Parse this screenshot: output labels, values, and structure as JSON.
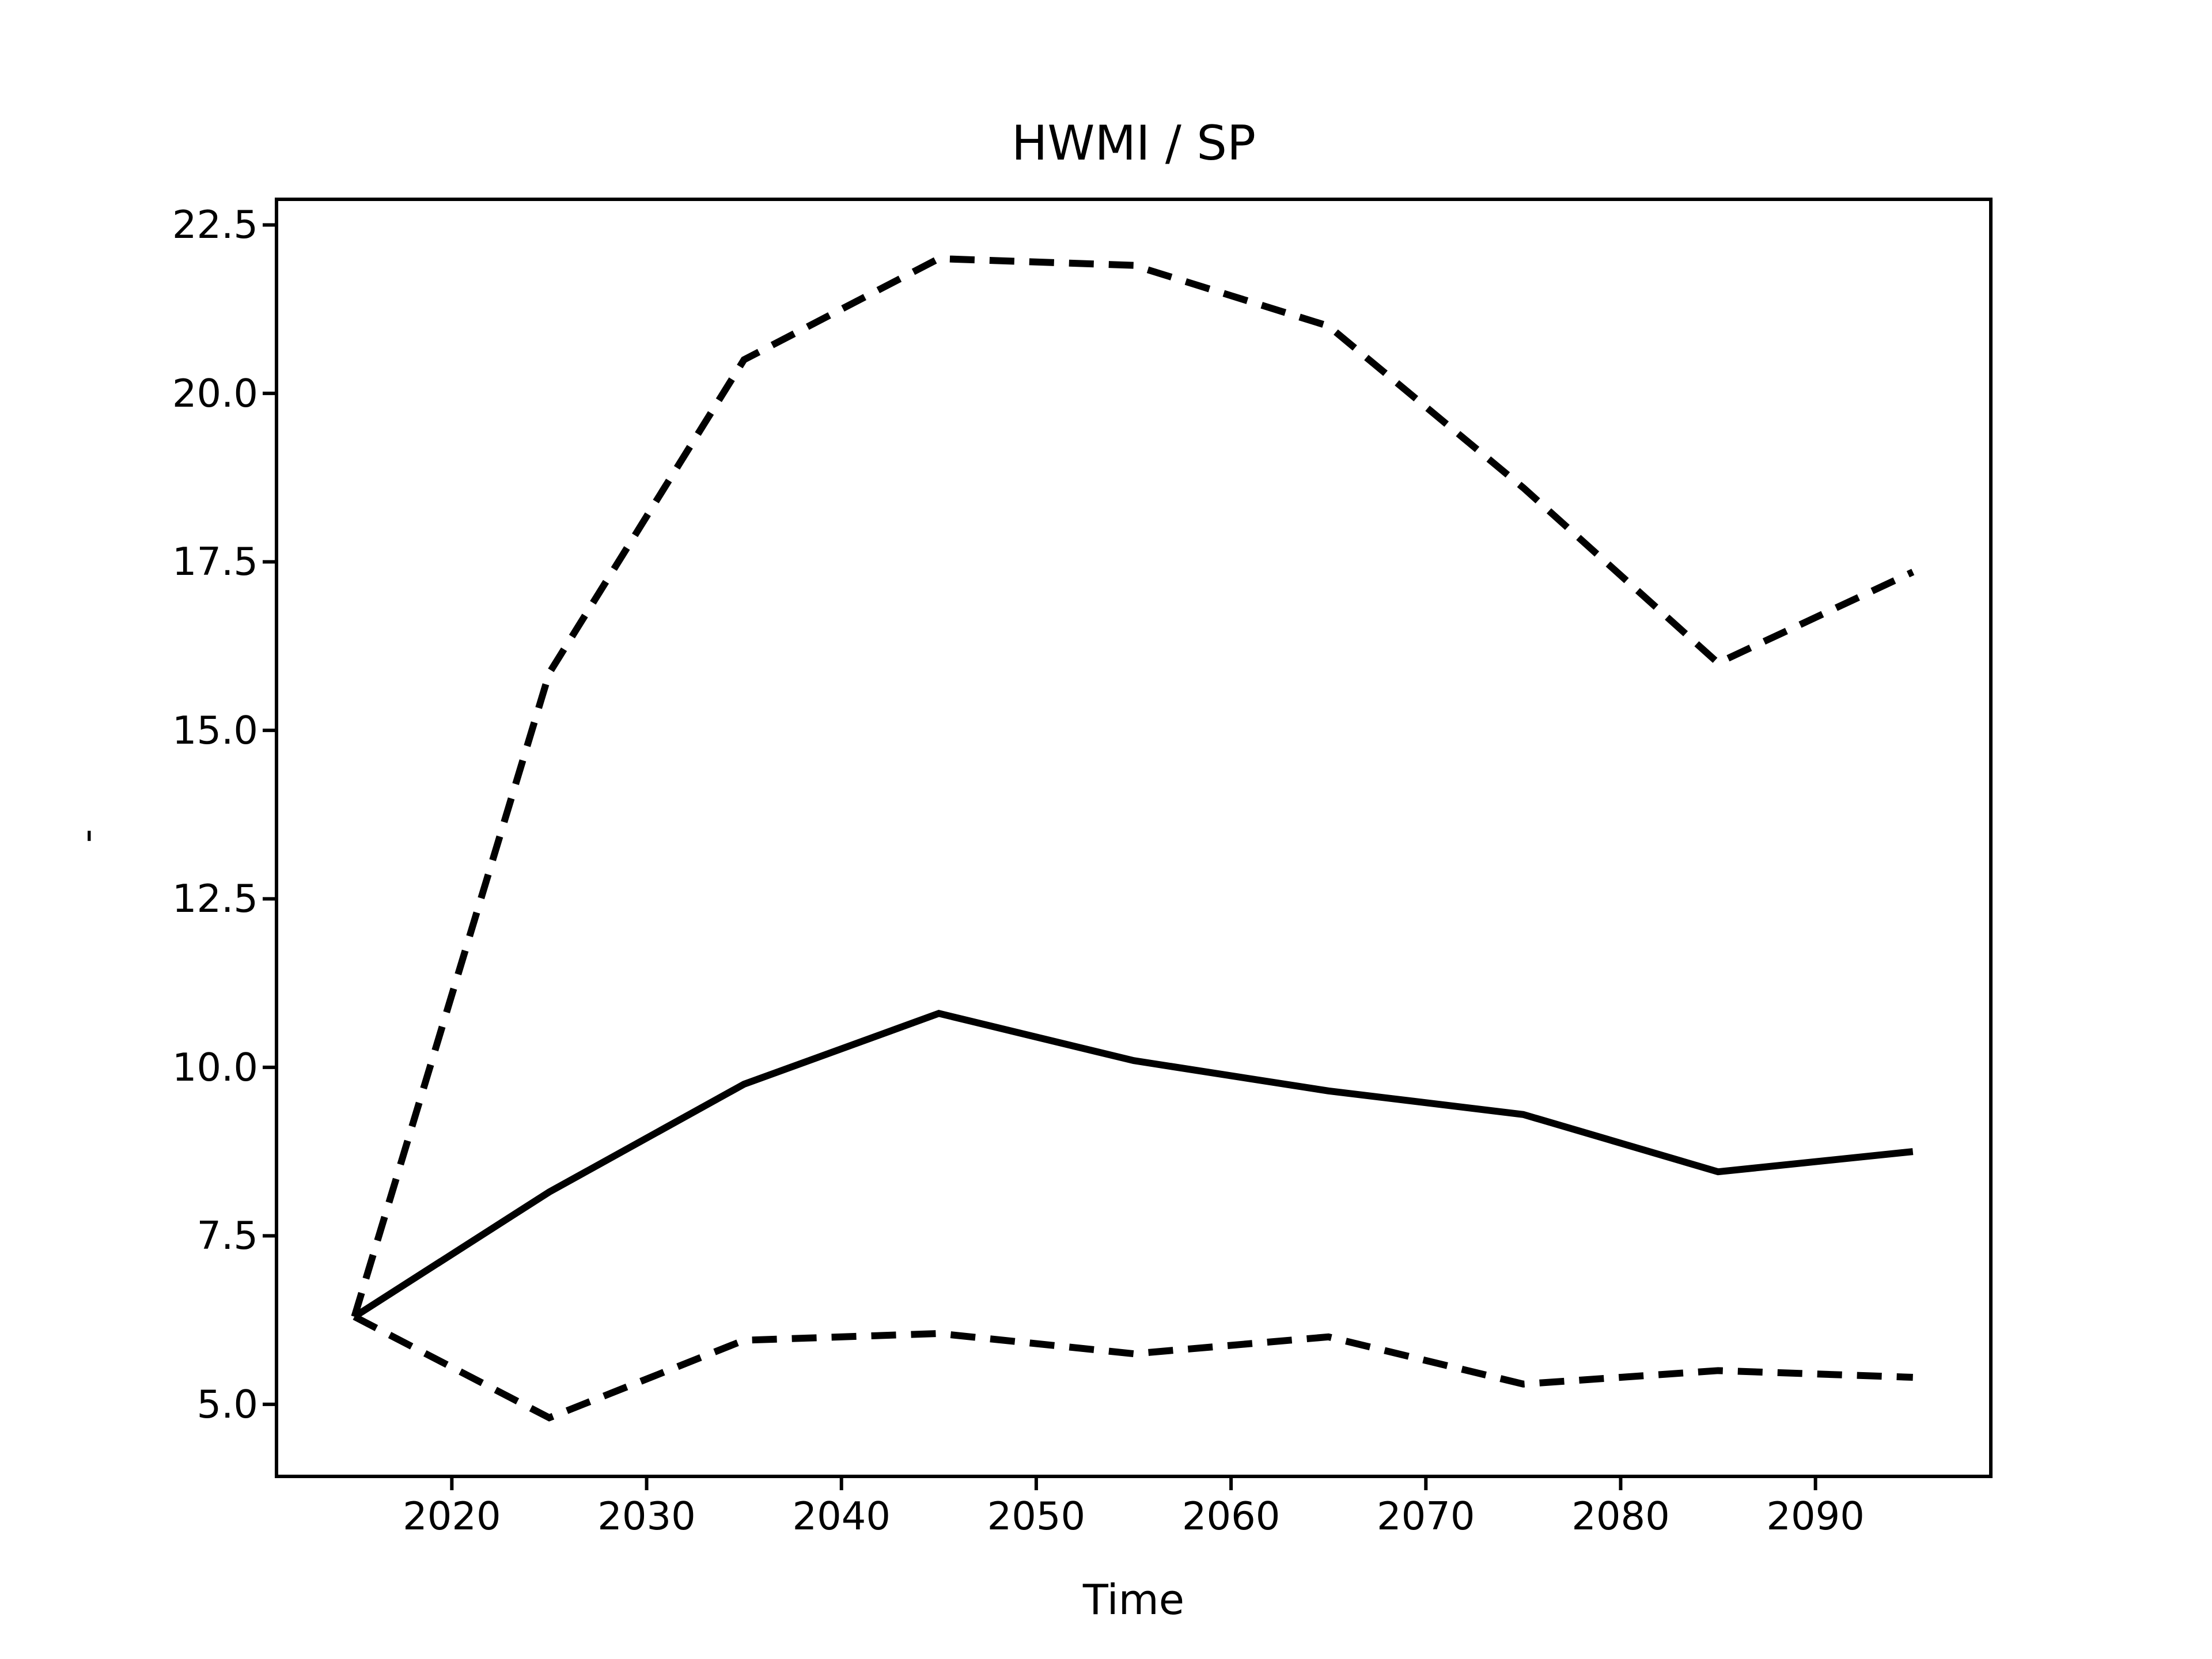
{
  "title": "HWMI / SP",
  "x_axis": {
    "label": "Time",
    "tick_labels": [
      "2020",
      "2030",
      "2040",
      "2050",
      "2060",
      "2070",
      "2080",
      "2090"
    ]
  },
  "y_axis": {
    "label": "-",
    "tick_labels": [
      "5.0",
      "7.5",
      "10.0",
      "12.5",
      "15.0",
      "17.5",
      "20.0",
      "22.5"
    ]
  },
  "colors": {
    "line": "#000000",
    "background": "#ffffff"
  },
  "chart_data": {
    "type": "line",
    "title": "HWMI / SP",
    "xlabel": "Time",
    "ylabel": "-",
    "x": [
      2015,
      2025,
      2035,
      2045,
      2055,
      2065,
      2075,
      2085,
      2095
    ],
    "series": [
      {
        "name": "central-solid-line",
        "style": "solid",
        "values": [
          6.3,
          8.15,
          9.75,
          10.8,
          10.1,
          9.65,
          9.3,
          8.45,
          8.75
        ]
      },
      {
        "name": "upper-dashed-line",
        "style": "dashed",
        "values": [
          6.3,
          15.85,
          20.5,
          22.0,
          21.9,
          21.0,
          18.6,
          16.0,
          17.35
        ]
      },
      {
        "name": "lower-dashed-line",
        "style": "dashed",
        "values": [
          6.3,
          4.8,
          5.95,
          6.05,
          5.75,
          6.0,
          5.3,
          5.5,
          5.4
        ]
      }
    ],
    "xticks": [
      2020,
      2030,
      2040,
      2050,
      2060,
      2070,
      2080,
      2090
    ],
    "yticks": [
      5.0,
      7.5,
      10.0,
      12.5,
      15.0,
      17.5,
      20.0,
      22.5
    ],
    "xlim": [
      2011,
      2099
    ],
    "ylim": [
      3.93,
      22.88
    ],
    "grid": false,
    "legend": "none",
    "line_color": "#000000"
  }
}
